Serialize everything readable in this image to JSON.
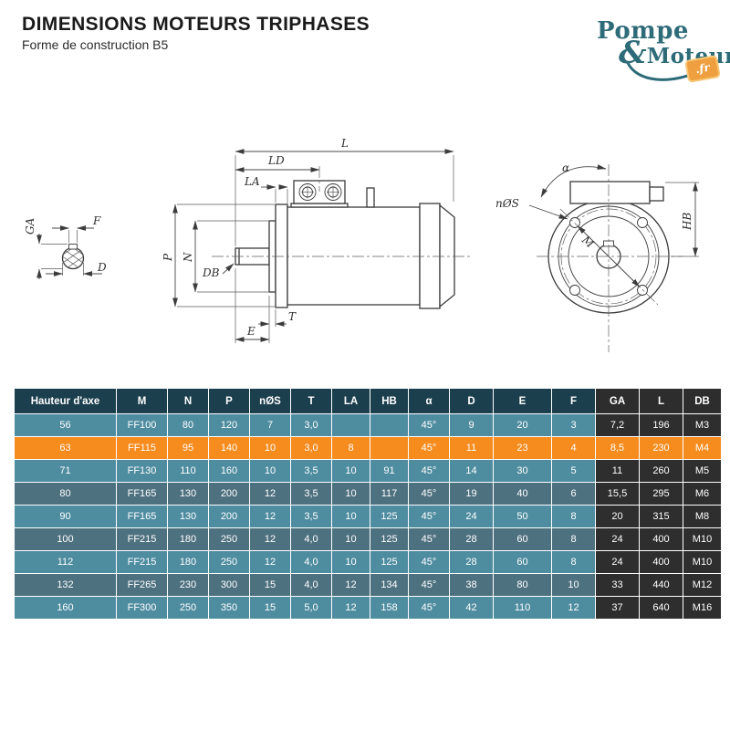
{
  "header": {
    "title": "DIMENSIONS MOTEURS TRIPHASES",
    "subtitle": "Forme de construction B5"
  },
  "logo": {
    "word1": "Pompe",
    "ampersand": "&",
    "word2": "Moteur",
    "badge": ".fr"
  },
  "drawing": {
    "labels": {
      "ga": "GA",
      "f": "F",
      "d": "D",
      "l": "L",
      "ld": "LD",
      "la": "LA",
      "p": "P",
      "n": "N",
      "db": "DB",
      "t": "T",
      "e": "E",
      "alpha": "α",
      "ns": "nØS",
      "m": "M",
      "hb": "HB"
    }
  },
  "table": {
    "columns": [
      "Hauteur d'axe",
      "M",
      "N",
      "P",
      "nØS",
      "T",
      "LA",
      "HB",
      "α",
      "D",
      "E",
      "F",
      "GA",
      "L",
      "DB"
    ],
    "rows": [
      [
        "56",
        "FF100",
        "80",
        "120",
        "7",
        "3,0",
        "",
        "",
        "45°",
        "9",
        "20",
        "3",
        "7,2",
        "196",
        "M3"
      ],
      [
        "63",
        "FF115",
        "95",
        "140",
        "10",
        "3,0",
        "8",
        "",
        "45°",
        "11",
        "23",
        "4",
        "8,5",
        "230",
        "M4"
      ],
      [
        "71",
        "FF130",
        "110",
        "160",
        "10",
        "3,5",
        "10",
        "91",
        "45°",
        "14",
        "30",
        "5",
        "11",
        "260",
        "M5"
      ],
      [
        "80",
        "FF165",
        "130",
        "200",
        "12",
        "3,5",
        "10",
        "117",
        "45°",
        "19",
        "40",
        "6",
        "15,5",
        "295",
        "M6"
      ],
      [
        "90",
        "FF165",
        "130",
        "200",
        "12",
        "3,5",
        "10",
        "125",
        "45°",
        "24",
        "50",
        "8",
        "20",
        "315",
        "M8"
      ],
      [
        "100",
        "FF215",
        "180",
        "250",
        "12",
        "4,0",
        "10",
        "125",
        "45°",
        "28",
        "60",
        "8",
        "24",
        "400",
        "M10"
      ],
      [
        "112",
        "FF215",
        "180",
        "250",
        "12",
        "4,0",
        "10",
        "125",
        "45°",
        "28",
        "60",
        "8",
        "24",
        "400",
        "M10"
      ],
      [
        "132",
        "FF265",
        "230",
        "300",
        "15",
        "4,0",
        "12",
        "134",
        "45°",
        "38",
        "80",
        "10",
        "33",
        "440",
        "M12"
      ],
      [
        "160",
        "FF300",
        "250",
        "350",
        "15",
        "5,0",
        "12",
        "158",
        "45°",
        "42",
        "110",
        "12",
        "37",
        "640",
        "M16"
      ]
    ],
    "highlighted_row_value": "63",
    "highlighted_row_index": 1,
    "dark_columns": [
      "GA",
      "L",
      "DB"
    ]
  },
  "theme": {
    "header-bg": "#1C3F4E",
    "header-dark": "#2D2D2D",
    "row-light": "#4E8CA0",
    "row-dark": "#4E7180",
    "dark-col": "#2E2E2E",
    "highlight": "#F68B1E",
    "logo-teal": "#2E6B78",
    "logo-orange": "#EF9F3F"
  }
}
